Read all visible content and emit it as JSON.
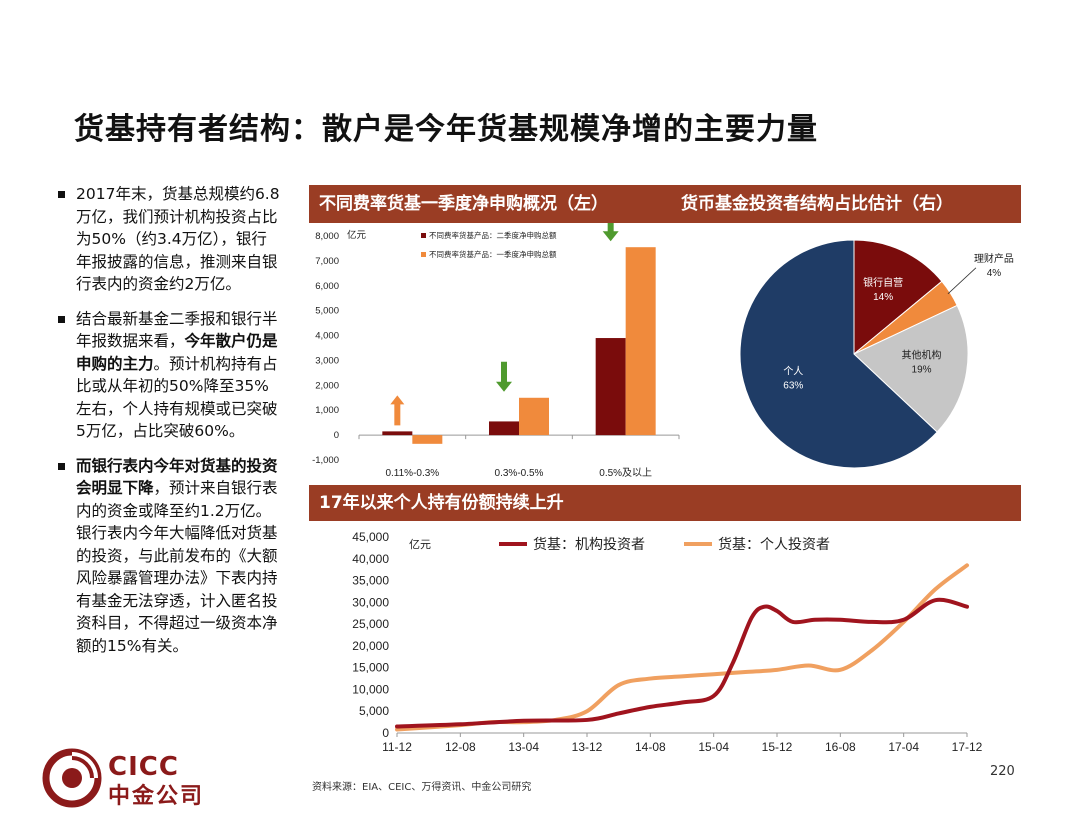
{
  "title": "货基持有者结构：散户是今年货基规模净增的主要力量",
  "bullets": [
    {
      "parts": [
        {
          "t": "2017年末，货基总规模约6.8万亿，我们预计机构投资占比为50%（约3.4万亿），银行年报披露的信息，推测来自银行表内的资金约2万亿。",
          "b": false
        }
      ]
    },
    {
      "parts": [
        {
          "t": "结合最新基金二季报和银行半年报数据来看，",
          "b": false
        },
        {
          "t": "今年散户仍是申购的主力",
          "b": true
        },
        {
          "t": "。预计机构持有占比或从年初的50%降至35%左右，个人持有规模或已突破5万亿，占比突破60%。",
          "b": false
        }
      ]
    },
    {
      "parts": [
        {
          "t": "而银行表内今年对货基的投资会明显下降",
          "b": true
        },
        {
          "t": "，预计来自银行表内的资金或降至约1.2万亿。银行表内今年大幅降低对货基的投资，与此前发布的《大额风险暴露管理办法》下表内持有基金无法穿透，计入匿名投资科目，不得超过一级资本净额的15%有关。",
          "b": false
        }
      ]
    }
  ],
  "panels": {
    "bar_title": "不同费率货基一季度净申购概况（左）",
    "pie_title": "货币基金投资者结构占比估计（右）",
    "line_title": "17年以来个人持有份额持续上升"
  },
  "colors": {
    "banner": "#9a3d24",
    "dark_red": "#7a0c0c",
    "orange": "#f08a3c",
    "green": "#4f9a2e",
    "navy": "#1f3c66",
    "gray": "#c6c6c6"
  },
  "chart_data": [
    {
      "type": "bar",
      "ylabel": "亿元",
      "ylim": [
        -1000,
        8000
      ],
      "yticks": [
        "-1,000",
        "0",
        "1,000",
        "2,000",
        "3,000",
        "4,000",
        "5,000",
        "6,000",
        "7,000",
        "8,000"
      ],
      "categories": [
        "0.11%-0.3%",
        "0.3%-0.5%",
        "0.5%及以上"
      ],
      "series": [
        {
          "name": "不同费率货基产品：二季度净申购总额",
          "color": "#7a0c0c",
          "values": [
            150,
            550,
            3900
          ]
        },
        {
          "name": "不同费率货基产品：一季度净申购总额",
          "color": "#f08a3c",
          "values": [
            -350,
            1500,
            7550
          ]
        }
      ],
      "arrows": [
        {
          "category": 0,
          "direction": "up",
          "color": "#f08a3c"
        },
        {
          "category": 1,
          "direction": "down",
          "color": "#4f9a2e"
        },
        {
          "category": 2,
          "direction": "down",
          "color": "#4f9a2e"
        }
      ]
    },
    {
      "type": "pie",
      "slices": [
        {
          "label": "银行自营",
          "value": 14,
          "text": "14%",
          "color": "#7a0c0c"
        },
        {
          "label": "理财产品",
          "value": 4,
          "text": "4%",
          "color": "#f08a3c"
        },
        {
          "label": "其他机构",
          "value": 19,
          "text": "19%",
          "color": "#c6c6c6"
        },
        {
          "label": "个人",
          "value": 63,
          "text": "63%",
          "color": "#1f3c66"
        }
      ]
    },
    {
      "type": "line",
      "ylabel": "亿元",
      "ylim": [
        0,
        45000
      ],
      "yticks": [
        "0",
        "5,000",
        "10,000",
        "15,000",
        "20,000",
        "25,000",
        "30,000",
        "35,000",
        "40,000",
        "45,000"
      ],
      "x_ticks": [
        "11-12",
        "12-08",
        "13-04",
        "13-12",
        "14-08",
        "15-04",
        "15-12",
        "16-08",
        "17-04",
        "17-12"
      ],
      "series": [
        {
          "name": "货基：机构投资者",
          "color": "#a0141e",
          "points": [
            [
              0,
              1500
            ],
            [
              1,
              2000
            ],
            [
              2,
              2800
            ],
            [
              3,
              3000
            ],
            [
              3.5,
              4500
            ],
            [
              4,
              6000
            ],
            [
              4.5,
              7000
            ],
            [
              5,
              8500
            ],
            [
              5.3,
              16000
            ],
            [
              5.6,
              26500
            ],
            [
              5.8,
              29000
            ],
            [
              6.0,
              28000
            ],
            [
              6.25,
              25500
            ],
            [
              6.6,
              26000
            ],
            [
              7.0,
              26000
            ],
            [
              7.5,
              25500
            ],
            [
              8.0,
              26000
            ],
            [
              8.5,
              30500
            ],
            [
              9,
              29000
            ]
          ]
        },
        {
          "name": "货基：个人投资者",
          "color": "#f0a060",
          "points": [
            [
              0,
              800
            ],
            [
              1,
              1800
            ],
            [
              1.5,
              2500
            ],
            [
              2,
              2500
            ],
            [
              2.5,
              3000
            ],
            [
              3,
              5000
            ],
            [
              3.5,
              11000
            ],
            [
              4,
              12500
            ],
            [
              4.5,
              13000
            ],
            [
              5,
              13500
            ],
            [
              5.5,
              14000
            ],
            [
              6,
              14500
            ],
            [
              6.5,
              15500
            ],
            [
              7,
              14500
            ],
            [
              7.5,
              19000
            ],
            [
              8,
              25500
            ],
            [
              8.5,
              33000
            ],
            [
              9,
              38500
            ]
          ]
        }
      ]
    }
  ],
  "source": "资料来源：EIA、CEIC、万得资讯、中金公司研究",
  "page_number": "220",
  "logo": {
    "en": "CICC",
    "cn": "中金公司"
  }
}
